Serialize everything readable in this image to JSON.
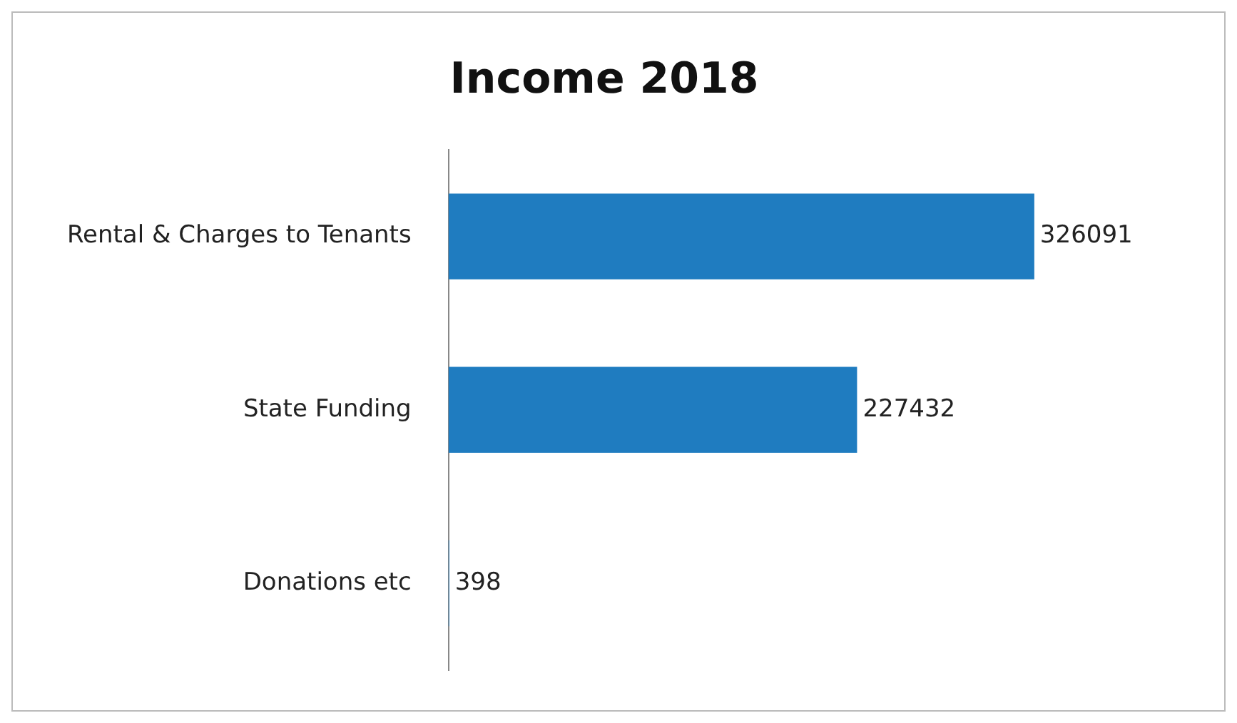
{
  "chart_data": {
    "type": "bar",
    "orientation": "horizontal",
    "title": "Income 2018",
    "categories": [
      "Rental & Charges to Tenants",
      "State Funding",
      "Donations etc"
    ],
    "values": [
      326091,
      227432,
      398
    ],
    "color": "#1f7cc0",
    "data_labels": true,
    "legend": false
  }
}
